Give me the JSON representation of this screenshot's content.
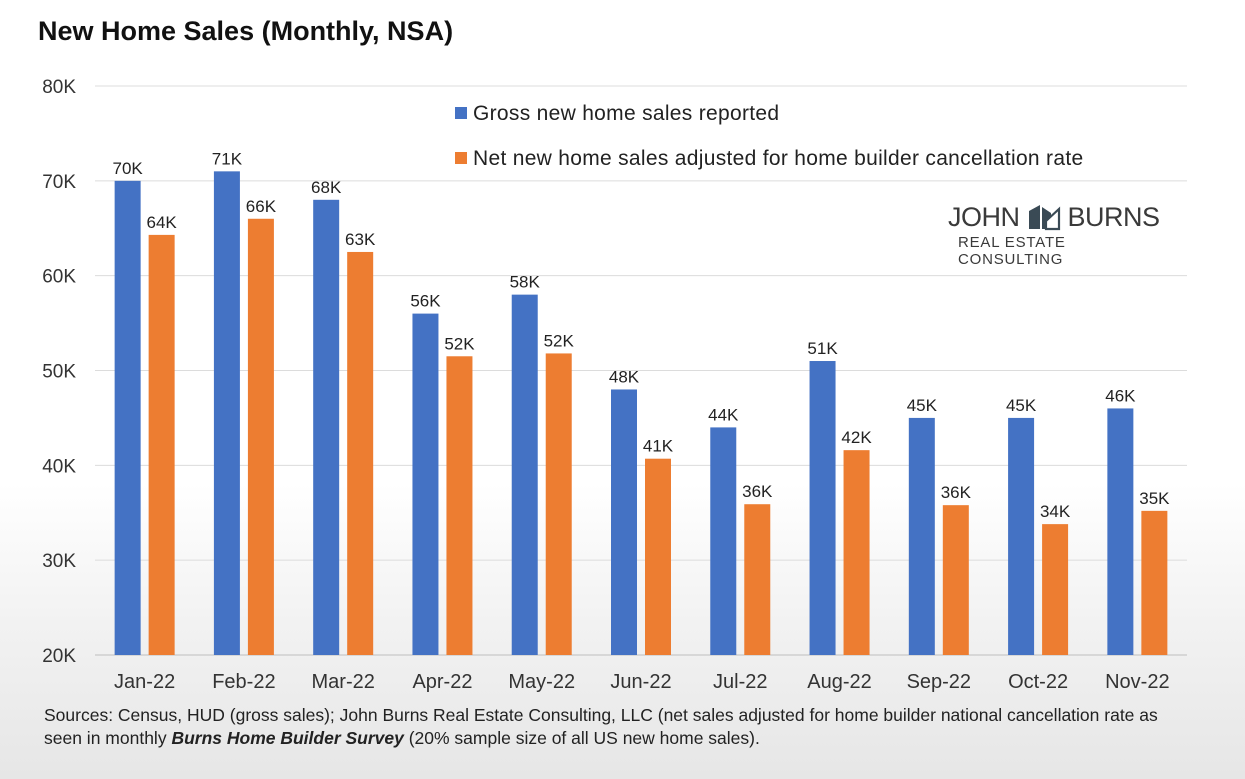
{
  "chart_data": {
    "type": "bar",
    "title": "New Home Sales (Monthly, NSA)",
    "categories": [
      "Jan-22",
      "Feb-22",
      "Mar-22",
      "Apr-22",
      "May-22",
      "Jun-22",
      "Jul-22",
      "Aug-22",
      "Sep-22",
      "Oct-22",
      "Nov-22"
    ],
    "series": [
      {
        "name": "Gross new home sales reported",
        "color": "#4472C4",
        "values": [
          70,
          71,
          68,
          56,
          58,
          48,
          44,
          51,
          45,
          45,
          46
        ],
        "labels": [
          "70K",
          "71K",
          "68K",
          "56K",
          "58K",
          "48K",
          "44K",
          "51K",
          "45K",
          "45K",
          "46K"
        ]
      },
      {
        "name": "Net new home sales adjusted for home builder cancellation rate",
        "color": "#ED7D31",
        "values": [
          64.3,
          66,
          62.5,
          51.5,
          51.8,
          40.7,
          35.9,
          41.6,
          35.8,
          33.8,
          35.2
        ],
        "labels": [
          "64K",
          "66K",
          "63K",
          "52K",
          "52K",
          "41K",
          "36K",
          "42K",
          "36K",
          "34K",
          "35K"
        ]
      }
    ],
    "ylim": [
      20,
      80
    ],
    "yticks": [
      20,
      30,
      40,
      50,
      60,
      70,
      80
    ],
    "ytick_labels": [
      "20K",
      "30K",
      "40K",
      "50K",
      "60K",
      "70K",
      "80K"
    ],
    "xlabel": "",
    "ylabel": "",
    "grid": true,
    "legend": "top-right"
  },
  "logo": {
    "word_left": "JOHN",
    "word_right": "BURNS",
    "subtitle": "REAL ESTATE CONSULTING"
  },
  "sources": {
    "part1": "Sources: Census, HUD (gross sales); John Burns Real Estate Consulting, LLC (net sales adjusted for home builder national cancellation rate as seen in monthly ",
    "emphasis": "Burns Home Builder Survey",
    "part2": " (20% sample size of all US new home sales)."
  }
}
